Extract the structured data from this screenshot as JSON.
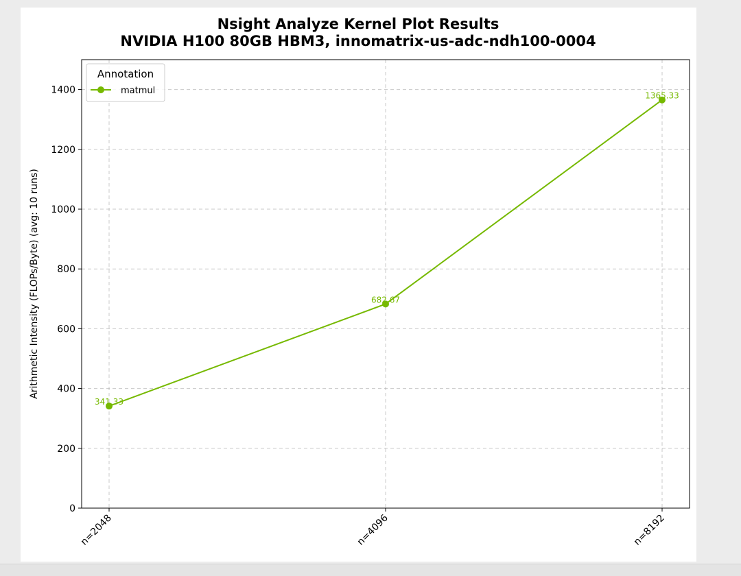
{
  "chart_data": {
    "type": "line",
    "title": "Nsight Analyze Kernel Plot Results",
    "subtitle": "NVIDIA H100 80GB HBM3, innomatrix-us-adc-ndh100-0004",
    "xlabel": "",
    "ylabel": "Arithmetic Intensity (FLOPs/Byte) (avg: 10 runs)",
    "categories": [
      "n=2048",
      "n=4096",
      "n=8192"
    ],
    "series": [
      {
        "name": "matmul",
        "values": [
          341.33,
          682.67,
          1365.33
        ],
        "labels": [
          "341.33",
          "682.67",
          "1365.33"
        ],
        "color": "#76b900"
      }
    ],
    "ylim": [
      0,
      1500
    ],
    "yticks": [
      0,
      200,
      400,
      600,
      800,
      1000,
      1200,
      1400
    ],
    "grid": true,
    "legend": {
      "title": "Annotation",
      "placement": "top-left"
    }
  }
}
